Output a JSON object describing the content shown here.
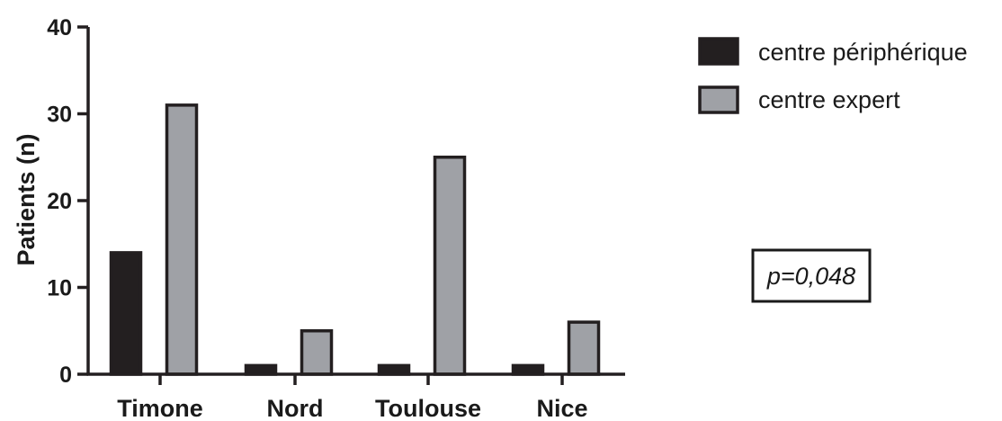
{
  "chart_data": {
    "type": "bar",
    "categories": [
      "Timone",
      "Nord",
      "Toulouse",
      "Nice"
    ],
    "series": [
      {
        "name": "centre périphérique",
        "values": [
          14,
          1,
          1,
          1
        ],
        "color": "#231f20"
      },
      {
        "name": "centre expert",
        "values": [
          31,
          5,
          25,
          6
        ],
        "color": "#9fa1a6"
      }
    ],
    "title": "",
    "xlabel": "",
    "ylabel": "Patients (n)",
    "ylim": [
      0,
      40
    ],
    "yticks": [
      0,
      10,
      20,
      30,
      40
    ],
    "grid": false,
    "legend_position": "top-right",
    "annotation": "p=0,048"
  }
}
